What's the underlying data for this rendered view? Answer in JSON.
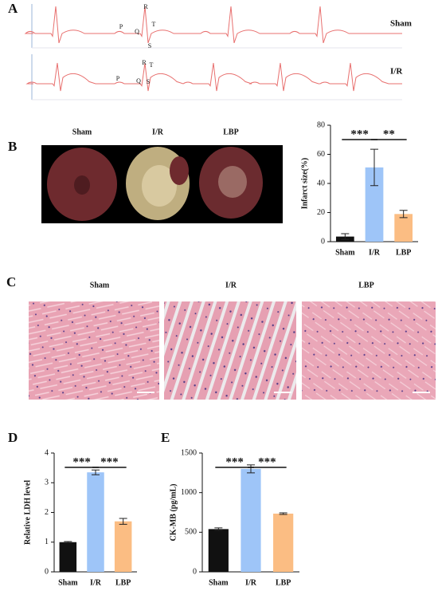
{
  "panel_labels": [
    "A",
    "B",
    "C",
    "D",
    "E"
  ],
  "ecg": {
    "traces": [
      {
        "label": "Sham",
        "waves": [
          "P",
          "Q",
          "R",
          "S",
          "T"
        ]
      },
      {
        "label": "I/R",
        "waves": [
          "P",
          "Q",
          "R",
          "S",
          "T"
        ]
      }
    ]
  },
  "heart_images": {
    "labels": [
      "Sham",
      "I/R",
      "LBP"
    ]
  },
  "histology": {
    "labels": [
      "Sham",
      "I/R",
      "LBP"
    ]
  },
  "chart_data": [
    {
      "type": "bar",
      "ylabel": "Infarct size(%)",
      "categories": [
        "Sham",
        "I/R",
        "LBP"
      ],
      "values": [
        3.5,
        51,
        19
      ],
      "errors": [
        2,
        12.5,
        2.5
      ],
      "colors": [
        "#111111",
        "#9ec5f8",
        "#fbbd83"
      ],
      "ylim": [
        0,
        80
      ],
      "yticks": [
        0,
        20,
        40,
        60,
        80
      ],
      "significance": [
        {
          "pair": [
            "Sham",
            "I/R"
          ],
          "label": "***"
        },
        {
          "pair": [
            "I/R",
            "LBP"
          ],
          "label": "**"
        }
      ]
    },
    {
      "type": "bar",
      "ylabel": "Relative LDH level",
      "categories": [
        "Sham",
        "I/R",
        "LBP"
      ],
      "values": [
        1.0,
        3.35,
        1.7
      ],
      "errors": [
        0.02,
        0.08,
        0.1
      ],
      "colors": [
        "#111111",
        "#9ec5f8",
        "#fbbd83"
      ],
      "ylim": [
        0,
        4
      ],
      "yticks": [
        0,
        1,
        2,
        3,
        4
      ],
      "significance": [
        {
          "pair": [
            "Sham",
            "I/R"
          ],
          "label": "***"
        },
        {
          "pair": [
            "I/R",
            "LBP"
          ],
          "label": "***"
        }
      ]
    },
    {
      "type": "bar",
      "ylabel": "CK-MB  (pg/mL)",
      "categories": [
        "Sham",
        "I/R",
        "LBP"
      ],
      "values": [
        540,
        1300,
        735
      ],
      "errors": [
        15,
        50,
        10
      ],
      "colors": [
        "#111111",
        "#9ec5f8",
        "#fbbd83"
      ],
      "ylim": [
        0,
        1500
      ],
      "yticks": [
        0,
        500,
        1000,
        1500
      ],
      "significance": [
        {
          "pair": [
            "Sham",
            "I/R"
          ],
          "label": "***"
        },
        {
          "pair": [
            "I/R",
            "LBP"
          ],
          "label": "***"
        }
      ]
    }
  ]
}
